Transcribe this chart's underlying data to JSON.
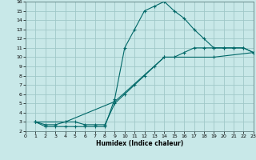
{
  "xlabel": "Humidex (Indice chaleur)",
  "background_color": "#c8e8e8",
  "grid_color": "#a0c8c8",
  "line_color": "#006868",
  "xlim": [
    0,
    23
  ],
  "ylim": [
    2,
    16
  ],
  "xticks": [
    0,
    1,
    2,
    3,
    4,
    5,
    6,
    7,
    8,
    9,
    10,
    11,
    12,
    13,
    14,
    15,
    16,
    17,
    18,
    19,
    20,
    21,
    22,
    23
  ],
  "yticks": [
    2,
    3,
    4,
    5,
    6,
    7,
    8,
    9,
    10,
    11,
    12,
    13,
    14,
    15,
    16
  ],
  "line1_x": [
    1,
    2,
    3,
    4,
    5,
    6,
    7,
    8,
    9,
    10,
    11,
    12,
    13,
    14,
    15,
    16,
    17,
    18,
    19,
    20,
    21,
    22,
    23
  ],
  "line1_y": [
    3,
    2.5,
    2.5,
    2.5,
    2.5,
    2.5,
    2.5,
    2.5,
    5.5,
    11,
    13,
    15,
    15.5,
    16,
    15,
    14.2,
    13,
    12,
    11,
    11,
    11,
    11,
    10.5
  ],
  "line2_x": [
    1,
    2,
    3,
    4,
    5,
    6,
    7,
    8,
    9,
    10,
    11,
    12,
    13,
    14,
    15,
    16,
    17,
    18,
    19,
    20,
    21,
    22,
    23
  ],
  "line2_y": [
    3,
    2.7,
    2.7,
    3,
    3,
    2.7,
    2.7,
    2.7,
    5,
    6,
    7,
    8,
    9,
    10,
    10,
    10.5,
    11,
    11,
    11,
    11,
    11,
    11,
    10.5
  ],
  "line3_x": [
    1,
    4,
    9,
    14,
    19,
    23
  ],
  "line3_y": [
    3,
    3,
    5.2,
    10,
    10,
    10.5
  ]
}
